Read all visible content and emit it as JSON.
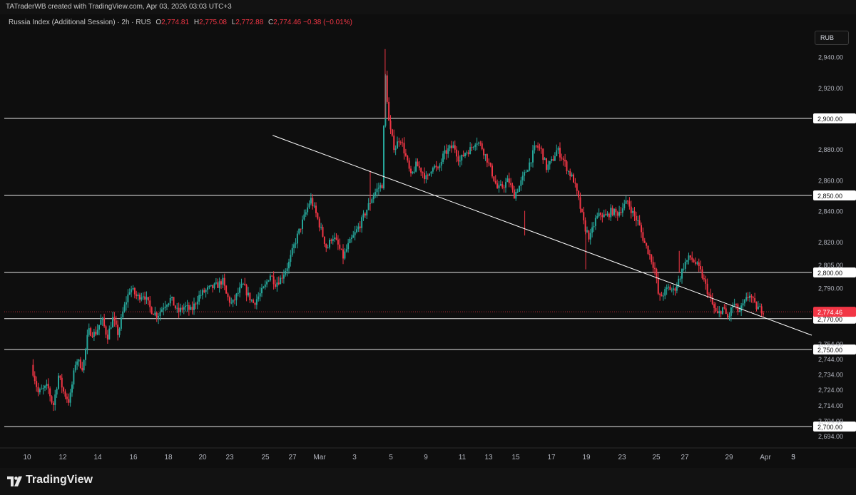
{
  "header": {
    "credit": "TATraderWB created with TradingView.com, Apr 03, 2026 03:03 UTC+3"
  },
  "legend": {
    "symbol": "Russia Index (Additional Session) · 2h · RUS",
    "open_label": "O",
    "open": "2,774.81",
    "high_label": "H",
    "high": "2,775.08",
    "low_label": "L",
    "low": "2,772.88",
    "close_label": "C",
    "close": "2,774.46",
    "change": "−0.38 (−0.01%)"
  },
  "currency": "RUB",
  "footer": {
    "brand": "TradingView"
  },
  "colors": {
    "up": "#26a69a",
    "down": "#f23645",
    "level_line": "#e6e6e6",
    "price_tag": "#f23645",
    "background": "#0e0e0e"
  },
  "chart_data": {
    "type": "candlestick",
    "title": "Russia Index (Additional Session)",
    "interval": "2h",
    "ylim": [
      2690,
      2960
    ],
    "y_ticks": [
      2694,
      2704,
      2714,
      2724,
      2734,
      2744,
      2754,
      2790,
      2805,
      2820,
      2840,
      2860,
      2880,
      2920,
      2940
    ],
    "y_tick_labels": [
      "2,694.00",
      "2,704.00",
      "2,714.00",
      "2,724.00",
      "2,734.00",
      "2,744.00",
      "2,754.00",
      "2,790.00",
      "2,805.00",
      "2,820.00",
      "2,840.00",
      "2,860.00",
      "2,880.00",
      "2,920.00",
      "2,940.00"
    ],
    "x_ticks": [
      "10",
      "12",
      "14",
      "16",
      "18",
      "20",
      "23",
      "25",
      "27",
      "Mar",
      "3",
      "5",
      "9",
      "11",
      "13",
      "15",
      "17",
      "19",
      "23",
      "25",
      "27",
      "29",
      "Apr",
      "3",
      "5"
    ],
    "horizontal_levels": [
      2900,
      2850,
      2800,
      2770,
      2750,
      2700
    ],
    "horizontal_level_labels": [
      "2,900.00",
      "2,850.00",
      "2,800.00",
      "2,770.00",
      "2,750.00",
      "2,700.00"
    ],
    "last_price": 2774.46,
    "last_price_label": "2,774.46",
    "trendline": {
      "from": {
        "x": 19.8,
        "y": 2889
      },
      "to": {
        "x": 28.8,
        "y": 2755
      }
    },
    "path": [
      [
        2.0,
        2740
      ],
      [
        2.5,
        2722
      ],
      [
        3.2,
        2726
      ],
      [
        3.6,
        2713
      ],
      [
        4.0,
        2733
      ],
      [
        4.4,
        2722
      ],
      [
        4.8,
        2716
      ],
      [
        5.3,
        2744
      ],
      [
        5.8,
        2738
      ],
      [
        6.2,
        2762
      ],
      [
        6.7,
        2760
      ],
      [
        7.2,
        2770
      ],
      [
        7.6,
        2758
      ],
      [
        8.0,
        2770
      ],
      [
        8.4,
        2760
      ],
      [
        8.8,
        2776
      ],
      [
        9.3,
        2790
      ],
      [
        9.8,
        2784
      ],
      [
        10.3,
        2786
      ],
      [
        10.8,
        2776
      ],
      [
        11.3,
        2772
      ],
      [
        11.8,
        2779
      ],
      [
        12.3,
        2783
      ],
      [
        12.8,
        2774
      ],
      [
        13.3,
        2778
      ],
      [
        13.8,
        2775
      ],
      [
        14.3,
        2784
      ],
      [
        14.8,
        2788
      ],
      [
        15.3,
        2790
      ],
      [
        15.8,
        2792
      ],
      [
        16.1,
        2795
      ],
      [
        16.4,
        2785
      ],
      [
        16.8,
        2779
      ],
      [
        17.2,
        2786
      ],
      [
        17.6,
        2792
      ],
      [
        18.0,
        2785
      ],
      [
        18.4,
        2780
      ],
      [
        18.8,
        2785
      ],
      [
        19.2,
        2790
      ],
      [
        19.6,
        2799
      ],
      [
        20.0,
        2793
      ],
      [
        20.4,
        2796
      ],
      [
        21.0,
        2806
      ],
      [
        21.4,
        2818
      ],
      [
        21.8,
        2828
      ],
      [
        22.3,
        2840
      ],
      [
        22.6,
        2848
      ],
      [
        23.0,
        2838
      ],
      [
        23.4,
        2827
      ],
      [
        23.8,
        2815
      ],
      [
        24.2,
        2824
      ],
      [
        24.6,
        2818
      ],
      [
        25.0,
        2810
      ],
      [
        25.4,
        2818
      ],
      [
        25.8,
        2824
      ],
      [
        26.3,
        2832
      ],
      [
        26.7,
        2840
      ],
      [
        27.2,
        2850
      ],
      [
        27.6,
        2855
      ],
      [
        27.9,
        2857
      ],
      [
        28.1,
        2930
      ],
      [
        28.4,
        2895
      ],
      [
        28.8,
        2880
      ],
      [
        29.2,
        2888
      ],
      [
        29.6,
        2876
      ],
      [
        30.0,
        2862
      ],
      [
        30.4,
        2870
      ],
      [
        30.8,
        2866
      ],
      [
        31.2,
        2860
      ],
      [
        31.6,
        2870
      ],
      [
        32.0,
        2866
      ],
      [
        32.4,
        2876
      ],
      [
        32.8,
        2880
      ],
      [
        33.2,
        2882
      ],
      [
        33.6,
        2872
      ],
      [
        34.0,
        2878
      ],
      [
        34.4,
        2880
      ],
      [
        34.8,
        2886
      ],
      [
        35.2,
        2882
      ],
      [
        35.6,
        2874
      ],
      [
        36.0,
        2864
      ],
      [
        36.4,
        2854
      ],
      [
        36.8,
        2856
      ],
      [
        37.2,
        2860
      ],
      [
        37.6,
        2850
      ],
      [
        38.0,
        2856
      ],
      [
        38.4,
        2864
      ],
      [
        38.8,
        2872
      ],
      [
        39.2,
        2882
      ],
      [
        39.6,
        2880
      ],
      [
        40.0,
        2868
      ],
      [
        40.4,
        2872
      ],
      [
        40.8,
        2880
      ],
      [
        41.2,
        2874
      ],
      [
        41.6,
        2866
      ],
      [
        42.0,
        2860
      ],
      [
        42.4,
        2846
      ],
      [
        42.8,
        2830
      ],
      [
        43.2,
        2822
      ],
      [
        43.6,
        2834
      ],
      [
        44.0,
        2838
      ],
      [
        44.4,
        2836
      ],
      [
        44.8,
        2840
      ],
      [
        45.2,
        2838
      ],
      [
        45.6,
        2842
      ],
      [
        46.0,
        2846
      ],
      [
        46.4,
        2838
      ],
      [
        46.8,
        2832
      ],
      [
        47.2,
        2820
      ],
      [
        47.6,
        2812
      ],
      [
        48.0,
        2802
      ],
      [
        48.3,
        2783
      ],
      [
        48.6,
        2786
      ],
      [
        49.0,
        2790
      ],
      [
        49.4,
        2788
      ],
      [
        49.8,
        2796
      ],
      [
        50.2,
        2806
      ],
      [
        50.6,
        2810
      ],
      [
        51.0,
        2806
      ],
      [
        51.4,
        2800
      ],
      [
        51.8,
        2790
      ],
      [
        52.2,
        2780
      ],
      [
        52.6,
        2772
      ],
      [
        53.0,
        2777
      ],
      [
        53.4,
        2770
      ],
      [
        53.8,
        2780
      ],
      [
        54.2,
        2774
      ],
      [
        54.6,
        2780
      ],
      [
        55.0,
        2786
      ],
      [
        55.4,
        2778
      ],
      [
        55.8,
        2776
      ],
      [
        56.1,
        2775
      ]
    ]
  }
}
